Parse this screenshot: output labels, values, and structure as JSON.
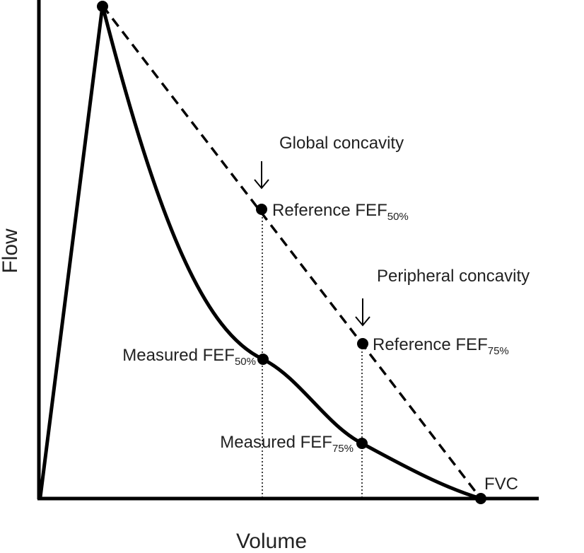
{
  "axes": {
    "y_label": "Flow",
    "x_label": "Volume"
  },
  "annotations": {
    "global": "Global concavity",
    "peripheral": "Peripheral concavity"
  },
  "points": {
    "reference_50": {
      "label": "Reference FEF",
      "subscript": "50%"
    },
    "measured_50": {
      "label": "Measured FEF",
      "subscript": "50%"
    },
    "reference_75": {
      "label": "Reference FEF",
      "subscript": "75%"
    },
    "measured_75": {
      "label": "Measured FEF",
      "subscript": "75%"
    },
    "fvc": {
      "label": "FVC"
    }
  }
}
